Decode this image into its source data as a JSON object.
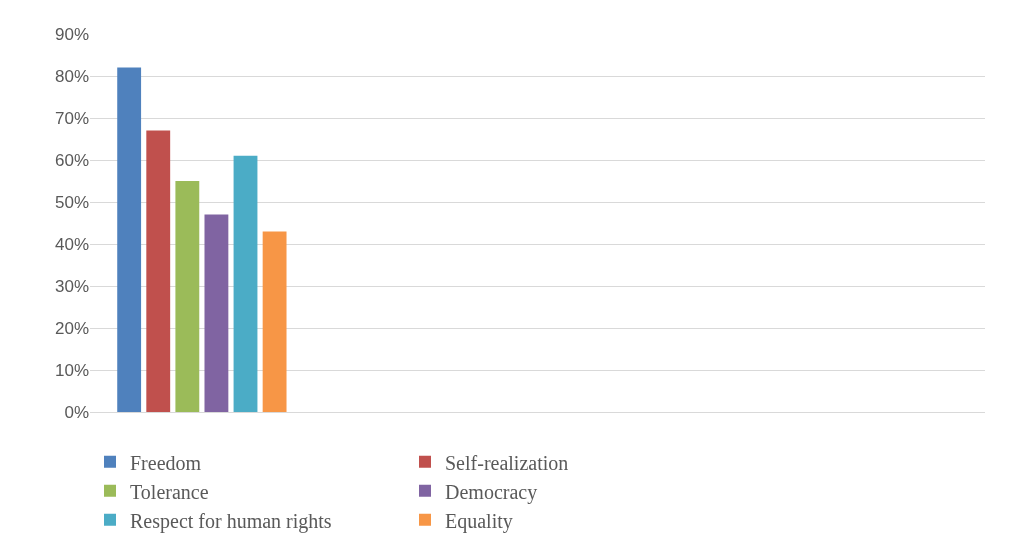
{
  "chart_data": {
    "type": "bar",
    "categories": [
      null,
      null,
      null,
      null
    ],
    "series": [
      {
        "name": "Freedom",
        "color": "#4f81bd",
        "values": [
          82,
          null,
          null,
          null
        ]
      },
      {
        "name": "Self-realization",
        "color": "#c0504d",
        "values": [
          67,
          null,
          null,
          null
        ]
      },
      {
        "name": "Tolerance",
        "color": "#9bbb59",
        "values": [
          55,
          null,
          null,
          null
        ]
      },
      {
        "name": "Democracy",
        "color": "#8064a2",
        "values": [
          47,
          null,
          null,
          null
        ]
      },
      {
        "name": "Respect for human rights",
        "color": "#4bacc6",
        "values": [
          61,
          null,
          null,
          null
        ]
      },
      {
        "name": "Equality",
        "color": "#f79646",
        "values": [
          43,
          null,
          null,
          null
        ]
      }
    ],
    "ylim": [
      0,
      90
    ],
    "yticks": [
      {
        "value": 0,
        "label": "0%"
      },
      {
        "value": 10,
        "label": "10%"
      },
      {
        "value": 20,
        "label": "20%"
      },
      {
        "value": 30,
        "label": "30%"
      },
      {
        "value": 40,
        "label": "40%"
      },
      {
        "value": 50,
        "label": "50%"
      },
      {
        "value": 60,
        "label": "60%"
      },
      {
        "value": 70,
        "label": "70%"
      },
      {
        "value": 80,
        "label": "80%"
      },
      {
        "value": 90,
        "label": "90%"
      }
    ],
    "grid": "y",
    "legend": "bottom"
  }
}
